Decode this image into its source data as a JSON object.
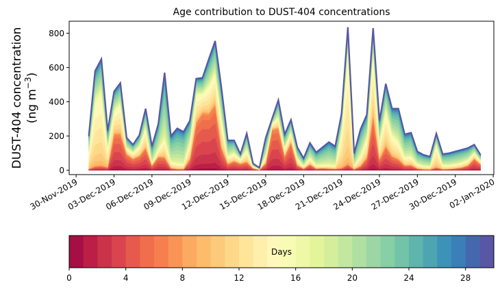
{
  "chart_data": {
    "type": "area",
    "stacked": true,
    "title": "Age contribution to DUST-404 concentrations",
    "ylabel_line1": "DUST-404 concentration",
    "ylabel_line2": "(ng m",
    "ylabel_sup": "−3",
    "ylabel_close": ")",
    "ylim": [
      -25,
      870
    ],
    "yticks": [
      0,
      200,
      400,
      600,
      800
    ],
    "xlim_days": [
      -0.55,
      33.05
    ],
    "xticks": [
      {
        "day": 0,
        "label": "30-Nov-2019"
      },
      {
        "day": 3,
        "label": "03-Dec-2019"
      },
      {
        "day": 6,
        "label": "06-Dec-2019"
      },
      {
        "day": 9,
        "label": "09-Dec-2019"
      },
      {
        "day": 12,
        "label": "12-Dec-2019"
      },
      {
        "day": 15,
        "label": "15-Dec-2019"
      },
      {
        "day": 18,
        "label": "18-Dec-2019"
      },
      {
        "day": 21,
        "label": "21-Dec-2019"
      },
      {
        "day": 24,
        "label": "24-Dec-2019"
      },
      {
        "day": 27,
        "label": "27-Dec-2019"
      },
      {
        "day": 30,
        "label": "30-Dec-2019"
      },
      {
        "day": 33,
        "label": "02-Jan-2020"
      }
    ],
    "x_start_day": 1,
    "x_step_days": 0.5,
    "totals": [
      200,
      580,
      650,
      230,
      460,
      510,
      190,
      150,
      205,
      360,
      140,
      270,
      570,
      200,
      245,
      225,
      290,
      535,
      540,
      650,
      755,
      480,
      175,
      175,
      95,
      215,
      40,
      15,
      190,
      300,
      410,
      210,
      295,
      135,
      70,
      160,
      105,
      135,
      165,
      140,
      330,
      835,
      100,
      240,
      325,
      830,
      290,
      505,
      360,
      360,
      210,
      220,
      110,
      90,
      80,
      215,
      95,
      100,
      110,
      120,
      130,
      150,
      90
    ],
    "young_share": [
      0.05,
      0.05,
      0.05,
      0.1,
      0.55,
      0.5,
      0.6,
      0.55,
      0.5,
      0.45,
      0.3,
      0.4,
      0.2,
      0.1,
      0.05,
      0.05,
      0.3,
      0.6,
      0.7,
      0.6,
      0.6,
      0.35,
      0.3,
      0.4,
      0.5,
      0.3,
      0.4,
      0.3,
      0.3,
      0.85,
      0.7,
      0.5,
      0.65,
      0.3,
      0.2,
      0.3,
      0.15,
      0.15,
      0.1,
      0.1,
      0.05,
      0.05,
      0.1,
      0.15,
      0.3,
      0.45,
      0.3,
      0.35,
      0.3,
      0.25,
      0.2,
      0.2,
      0.15,
      0.1,
      0.1,
      0.1,
      0.1,
      0.12,
      0.15,
      0.2,
      0.3,
      0.55,
      0.5
    ],
    "mid_share": [
      0.6,
      0.75,
      0.75,
      0.6,
      0.3,
      0.35,
      0.2,
      0.25,
      0.3,
      0.35,
      0.15,
      0.2,
      0.25,
      0.25,
      0.2,
      0.2,
      0.4,
      0.3,
      0.2,
      0.25,
      0.25,
      0.4,
      0.3,
      0.3,
      0.3,
      0.4,
      0.3,
      0.3,
      0.3,
      0.1,
      0.15,
      0.25,
      0.2,
      0.35,
      0.3,
      0.3,
      0.25,
      0.2,
      0.2,
      0.2,
      0.75,
      0.85,
      0.3,
      0.35,
      0.4,
      0.45,
      0.4,
      0.45,
      0.4,
      0.35,
      0.3,
      0.3,
      0.3,
      0.3,
      0.3,
      0.7,
      0.35,
      0.3,
      0.3,
      0.3,
      0.3,
      0.25,
      0.25
    ],
    "colorbar": {
      "label": "Days",
      "range": [
        0,
        30
      ],
      "ticks": [
        0,
        4,
        8,
        12,
        16,
        20,
        24,
        28
      ],
      "colors": [
        "#a50f43",
        "#bb1f47",
        "#cb334b",
        "#d9444e",
        "#e55a4d",
        "#f06e4b",
        "#f67f4f",
        "#f99457",
        "#fcaa61",
        "#fdbb6c",
        "#fdc97a",
        "#fed889",
        "#fee59a",
        "#feefab",
        "#fff8bb",
        "#f7fbb4",
        "#eff8a6",
        "#e4f49b",
        "#d5ee9b",
        "#c3e79f",
        "#b0dfa3",
        "#9cd6a4",
        "#87cfa4",
        "#72c3a7",
        "#5fb4ac",
        "#4ea4b0",
        "#3d92b7",
        "#3a7fb8",
        "#4468ae",
        "#5956a5"
      ]
    }
  }
}
